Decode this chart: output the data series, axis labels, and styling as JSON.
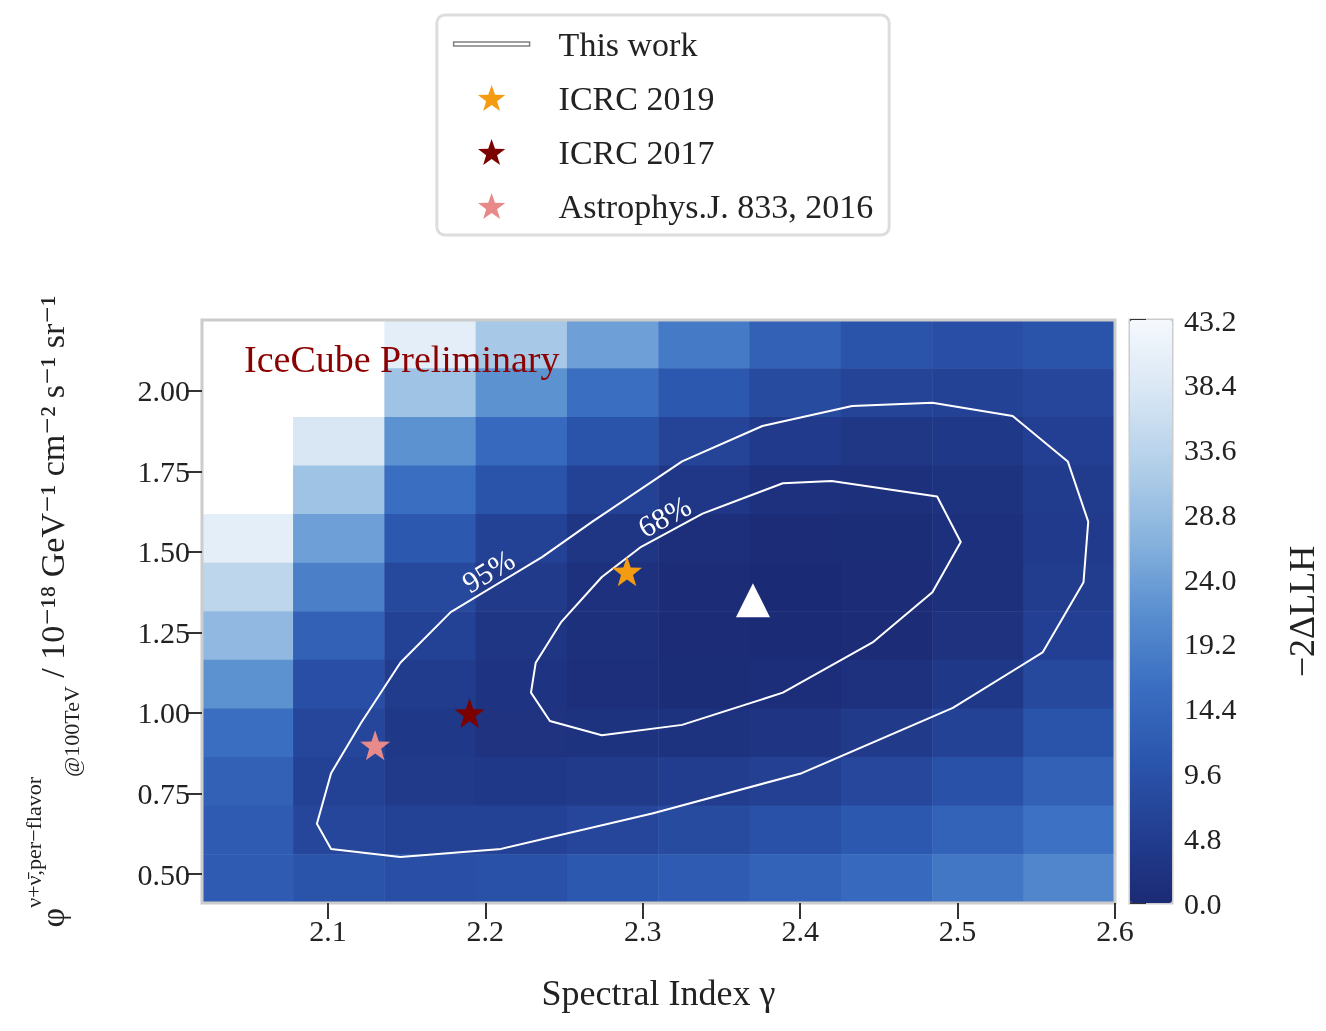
{
  "chart_data": [
    {
      "type": "heatmap",
      "clabel": "−2ΔLLH",
      "categories": [
        null,
        null,
        null,
        null,
        null,
        null,
        null,
        null,
        null,
        null
      ],
      "y_categories": [
        null,
        null,
        null,
        null,
        null,
        null,
        null,
        null,
        null,
        null,
        null,
        null
      ],
      "clim": [
        0,
        43.2
      ],
      "cticks": [
        {
          "value": 0,
          "label": "0.0"
        },
        4.8,
        9.6,
        14.4,
        19.2,
        {
          "value": 24,
          "label": "24.0"
        },
        28.8,
        33.6,
        38.4,
        43.2
      ],
      "cells": [
        [
          null,
          null,
          40,
          31,
          24,
          18,
          13,
          10,
          9,
          10
        ],
        [
          null,
          null,
          30,
          22,
          16,
          11,
          8,
          6.5,
          6,
          7
        ],
        [
          null,
          38,
          22,
          15,
          10,
          6.5,
          4.2,
          3.3,
          3.6,
          5.5
        ],
        [
          null,
          30,
          16,
          10,
          6,
          3.4,
          1.9,
          1.5,
          2.2,
          4.5
        ],
        [
          40,
          24,
          11,
          6,
          3,
          1.2,
          0.6,
          0.7,
          1.6,
          4.2
        ],
        [
          34,
          19,
          7.5,
          4,
          1.8,
          0.4,
          0.1,
          0.4,
          1.5,
          4.6
        ],
        [
          28,
          13,
          6,
          3,
          1.5,
          0.4,
          0.2,
          0.6,
          2,
          5.5
        ],
        [
          22,
          9,
          4.5,
          2.3,
          1.3,
          0.8,
          1,
          1.8,
          3.6,
          7.5
        ],
        [
          16,
          7,
          3.6,
          2.4,
          2.2,
          2.2,
          2.8,
          4,
          6,
          10
        ],
        [
          13,
          6,
          4,
          3.6,
          4,
          4.6,
          5.6,
          7.2,
          9.5,
          13
        ],
        [
          12,
          7,
          6,
          6,
          7,
          8,
          9.5,
          11,
          13.5,
          16.5
        ],
        [
          12,
          10,
          9,
          9.5,
          11,
          12,
          13.5,
          15,
          17.5,
          20
        ]
      ]
    },
    {
      "type": "scatter",
      "xlabel": "Spectral Index γ",
      "ylabel": "φ$^{ν+ν̄,per−flavor}$$_{@100TeV}$ / 10⁻¹⁸ GeV⁻¹ cm⁻² s⁻¹ sr⁻¹",
      "xlim": [
        2.02,
        2.6
      ],
      "xticks": [
        2.1,
        2.2,
        2.3,
        2.4,
        2.5,
        2.6
      ],
      "ylim": [
        0.41,
        2.22
      ],
      "yticks": [
        {
          "value": 0.5,
          "label": "0.50"
        },
        {
          "value": 0.75,
          "label": "0.75"
        },
        {
          "value": 1,
          "label": "1.00"
        },
        {
          "value": 1.25,
          "label": "1.25"
        },
        {
          "value": 1.5,
          "label": "1.50"
        },
        {
          "value": 1.75,
          "label": "1.75"
        },
        {
          "value": 2,
          "label": "2.00"
        }
      ],
      "legend": "top",
      "annotations": [
        "IceCube Preliminary",
        "95%",
        "68%"
      ],
      "series": [
        {
          "type": "line",
          "name": "This work",
          "color": "#ffffff",
          "line_style": "solid",
          "x": [
            2.093,
            2.102,
            2.146,
            2.21,
            2.306,
            2.401,
            2.497,
            2.554,
            2.58,
            2.583,
            null,
            2.093,
            2.102,
            2.121,
            2.146,
            2.178,
            2.236,
            2.268,
            2.325,
            2.376,
            2.433,
            2.484,
            2.535,
            2.57,
            2.583
          ],
          "values": [
            0.656,
            0.578,
            0.553,
            0.578,
            0.688,
            0.813,
            1.016,
            1.188,
            1.406,
            1.594,
            null,
            0.656,
            0.813,
            0.969,
            1.156,
            1.313,
            1.484,
            1.594,
            1.781,
            1.891,
            1.953,
            1.963,
            1.922,
            1.781,
            1.594
          ]
        },
        {
          "type": "line",
          "color": "#ffffff",
          "line_style": "solid",
          "x": [
            2.229,
            2.241,
            2.274,
            2.325,
            2.389,
            2.446,
            2.484,
            2.502,
            null,
            2.229,
            2.232,
            2.248,
            2.274,
            2.299,
            2.338,
            2.389,
            2.42,
            2.487,
            2.502
          ],
          "values": [
            1.063,
            0.975,
            0.931,
            0.963,
            1.063,
            1.219,
            1.375,
            1.531,
            null,
            1.063,
            1.156,
            1.281,
            1.422,
            1.516,
            1.619,
            1.713,
            1.72,
            1.672,
            1.531
          ]
        },
        {
          "marker": "triangle",
          "color": "#ffffff",
          "x": [
            2.37
          ],
          "values": [
            1.35
          ]
        },
        {
          "marker": "star",
          "name": "ICRC 2019",
          "color": "#f39c12",
          "x": [
            2.29
          ],
          "values": [
            1.44
          ]
        },
        {
          "marker": "star",
          "name": "ICRC 2017",
          "color": "#7b0000",
          "x": [
            2.19
          ],
          "values": [
            1.0
          ]
        },
        {
          "marker": "star",
          "name": "Astrophys.J. 833, 2016",
          "color": "#e88a8a",
          "x": [
            2.13
          ],
          "values": [
            0.9
          ]
        }
      ]
    }
  ]
}
